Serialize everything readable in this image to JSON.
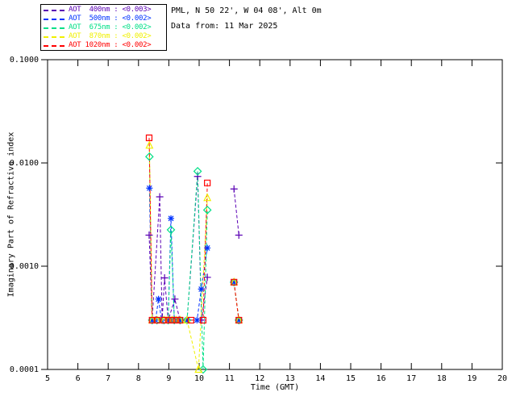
{
  "header": {
    "site": "PML, N 50 22', W 04 08', Alt 0m",
    "data_from": "Data from: 11 Mar 2025"
  },
  "legend": {
    "items": [
      {
        "label": "AOT  400nm : <0.003>",
        "color": "#5A00B4"
      },
      {
        "label": "AOT  500nm : <0.002>",
        "color": "#0033FF"
      },
      {
        "label": "AOT  675nm : <0.002>",
        "color": "#00E087"
      },
      {
        "label": "AOT  870nm : <0.002>",
        "color": "#F0F000"
      },
      {
        "label": "AOT 1020nm : <0.002>",
        "color": "#FF0000"
      }
    ]
  },
  "chart_data": {
    "type": "line",
    "title": "",
    "xlabel": "Time (GMT)",
    "ylabel": "Imaginary Part of Refractive index",
    "x_axis": {
      "min": 5,
      "max": 20,
      "ticks": [
        5,
        6,
        7,
        8,
        9,
        10,
        11,
        12,
        13,
        14,
        15,
        16,
        17,
        18,
        19,
        20
      ]
    },
    "y_axis": {
      "scale": "log",
      "min": 0.0001,
      "max": 0.1,
      "ticks": [
        {
          "value": 0.1,
          "label": "0.1000"
        },
        {
          "value": 0.01,
          "label": "0.0100"
        },
        {
          "value": 0.001,
          "label": "0.0010"
        },
        {
          "value": 0.0001,
          "label": "0.0001"
        }
      ]
    },
    "grid": false,
    "legend_position": "top-left",
    "line_style": "dashed",
    "series": [
      {
        "name": "AOT 400nm",
        "aot_value": "<0.003>",
        "color": "#5A00B4",
        "marker": "plus",
        "segments": [
          [
            [
              8.35,
              0.002
            ],
            [
              8.45,
              0.0003
            ],
            [
              8.7,
              0.0047
            ],
            [
              8.78,
              0.0003
            ],
            [
              8.86,
              0.00077
            ],
            [
              8.98,
              0.0003
            ],
            [
              9.2,
              0.00048
            ],
            [
              9.37,
              0.0003
            ],
            [
              9.6,
              0.0003
            ],
            [
              9.95,
              0.0074
            ],
            [
              10.08,
              0.0003
            ],
            [
              10.27,
              0.00078
            ]
          ],
          [
            [
              11.15,
              0.0056
            ],
            [
              11.31,
              0.002
            ]
          ]
        ]
      },
      {
        "name": "AOT 500nm",
        "aot_value": "<0.002>",
        "color": "#0033FF",
        "marker": "asterisk",
        "segments": [
          [
            [
              8.36,
              0.0057
            ],
            [
              8.45,
              0.0003
            ],
            [
              8.56,
              0.0003
            ],
            [
              8.66,
              0.00048
            ],
            [
              8.76,
              0.0003
            ],
            [
              8.98,
              0.0003
            ],
            [
              9.07,
              0.0029
            ],
            [
              9.18,
              0.0003
            ],
            [
              9.37,
              0.0003
            ],
            [
              9.6,
              0.0003
            ],
            [
              9.93,
              0.0003
            ],
            [
              10.07,
              0.0006
            ],
            [
              10.27,
              0.0015
            ]
          ],
          [
            [
              11.15,
              0.0007
            ],
            [
              11.31,
              0.0003
            ]
          ]
        ]
      },
      {
        "name": "AOT 675nm",
        "aot_value": "<0.002>",
        "color": "#00E087",
        "marker": "diamond",
        "segments": [
          [
            [
              8.36,
              0.0115
            ],
            [
              8.45,
              0.0003
            ],
            [
              8.61,
              0.0003
            ],
            [
              8.84,
              0.0003
            ],
            [
              8.98,
              0.0003
            ],
            [
              9.07,
              0.00225
            ],
            [
              9.18,
              0.0003
            ],
            [
              9.37,
              0.0003
            ],
            [
              9.6,
              0.0003
            ],
            [
              9.95,
              0.0083
            ],
            [
              10.13,
              0.0001
            ],
            [
              10.27,
              0.0035
            ]
          ],
          [
            [
              11.15,
              0.0007
            ],
            [
              11.31,
              0.0003
            ]
          ]
        ]
      },
      {
        "name": "AOT 870nm",
        "aot_value": "<0.002>",
        "color": "#F0F000",
        "marker": "triangle",
        "segments": [
          [
            [
              8.36,
              0.0148
            ],
            [
              8.45,
              0.0003
            ],
            [
              8.61,
              0.0003
            ],
            [
              8.84,
              0.0003
            ],
            [
              8.98,
              0.0003
            ],
            [
              9.11,
              0.0003
            ],
            [
              9.24,
              0.0003
            ],
            [
              9.37,
              0.0003
            ],
            [
              9.6,
              0.0003
            ],
            [
              9.98,
              0.0001
            ],
            [
              10.27,
              0.0046
            ]
          ],
          [
            [
              11.15,
              0.0007
            ],
            [
              11.31,
              0.0003
            ]
          ]
        ]
      },
      {
        "name": "AOT 1020nm",
        "aot_value": "<0.002>",
        "color": "#FF0000",
        "marker": "square",
        "segments": [
          [
            [
              8.35,
              0.0175
            ],
            [
              8.45,
              0.0003
            ],
            [
              8.61,
              0.0003
            ],
            [
              8.84,
              0.0003
            ],
            [
              8.98,
              0.0003
            ],
            [
              9.11,
              0.0003
            ],
            [
              9.24,
              0.0003
            ],
            [
              9.37,
              0.0003
            ],
            [
              9.73,
              0.0003
            ],
            [
              10.13,
              0.0003
            ],
            [
              10.27,
              0.0064
            ]
          ],
          [
            [
              11.15,
              0.0007
            ],
            [
              11.31,
              0.0003
            ]
          ]
        ]
      }
    ]
  }
}
